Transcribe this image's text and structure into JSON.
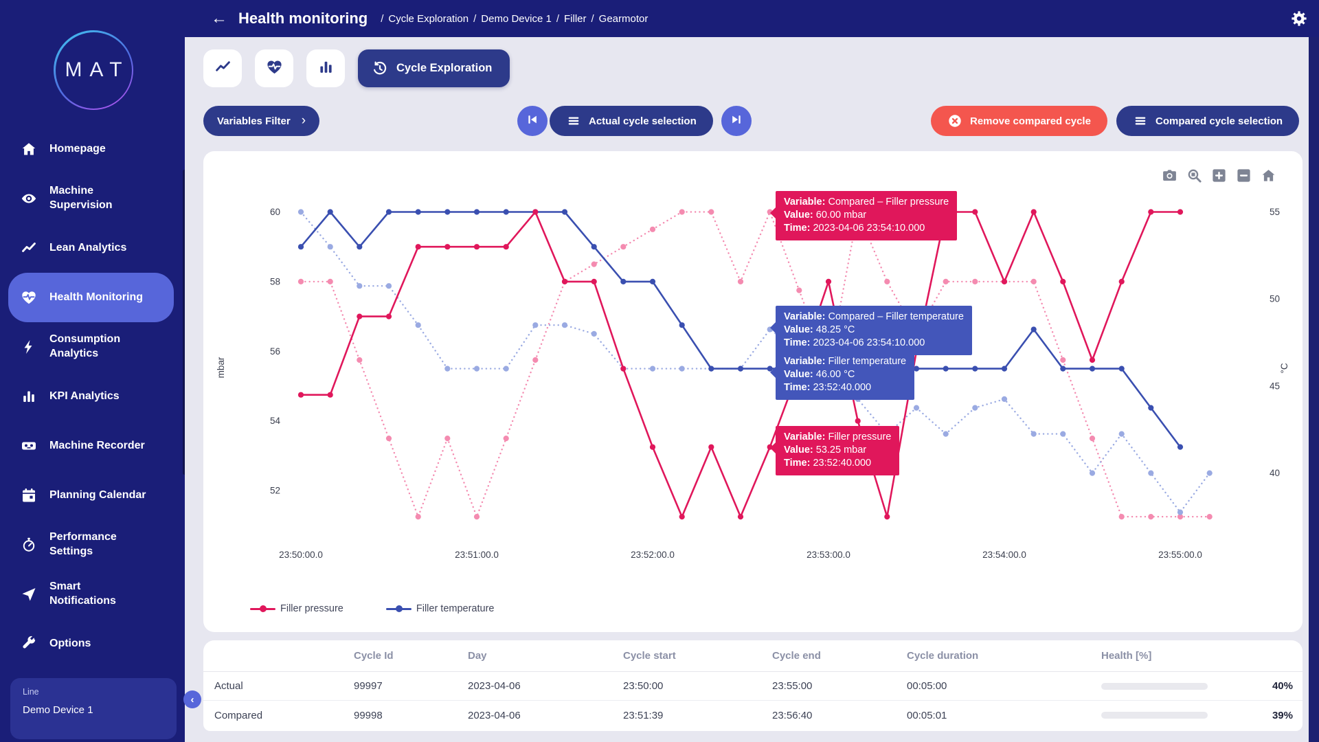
{
  "colors": {
    "navy": "#1a1e78",
    "accent": "#5766da",
    "button_navy": "#2d3a8a",
    "red": "#f4564e",
    "pink": "#e0175b",
    "pink_light": "#f48bb0",
    "blue": "#3a4fb0",
    "blue_light": "#9aaae2",
    "yellow": "#f5c843",
    "background": "#e7e7f0",
    "tooltip_blue": "#4356ba"
  },
  "sidebar": {
    "logo_text": "MAT",
    "items": [
      {
        "icon": "home",
        "label": "Homepage",
        "active": false
      },
      {
        "icon": "eye",
        "label": "Machine Supervision",
        "active": false
      },
      {
        "icon": "trend",
        "label": "Lean Analytics",
        "active": false
      },
      {
        "icon": "heart-pulse",
        "label": "Health Monitoring",
        "active": true
      },
      {
        "icon": "bolt",
        "label": "Consumption Analytics",
        "active": false
      },
      {
        "icon": "bar-chart",
        "label": "KPI Analytics",
        "active": false
      },
      {
        "icon": "recorder",
        "label": "Machine Recorder",
        "active": false
      },
      {
        "icon": "calendar",
        "label": "Planning Calendar",
        "active": false
      },
      {
        "icon": "stopwatch",
        "label": "Performance Settings",
        "active": false
      },
      {
        "icon": "send",
        "label": "Smart Notifications",
        "active": false
      },
      {
        "icon": "wrench",
        "label": "Options",
        "active": false
      }
    ],
    "device_card": {
      "label": "Line",
      "name": "Demo Device 1"
    }
  },
  "header": {
    "title": "Health monitoring",
    "separator": "/",
    "breadcrumbs": [
      "Cycle Exploration",
      "Demo Device 1",
      "Filler",
      "Gearmotor"
    ]
  },
  "toolbar": {
    "tabs": [
      {
        "icon": "trend"
      },
      {
        "icon": "heart-pulse"
      },
      {
        "icon": "bar-chart"
      }
    ],
    "active_tab": {
      "icon": "history",
      "label": "Cycle Exploration"
    }
  },
  "controls": {
    "variables_filter": "Variables Filter",
    "actual_selection": "Actual cycle selection",
    "remove_compared": "Remove compared cycle",
    "compared_selection": "Compared cycle selection"
  },
  "chart": {
    "modebar": [
      "camera",
      "zoom",
      "zoom-in",
      "zoom-out",
      "home"
    ],
    "y_left": {
      "label": "mbar",
      "ticks": [
        52,
        54,
        56,
        58,
        60
      ]
    },
    "y_right": {
      "label": "°C",
      "ticks": [
        40,
        45,
        50,
        55
      ]
    },
    "x": {
      "ticks": [
        "23:50:00.0",
        "23:51:00.0",
        "23:52:00.0",
        "23:53:00.0",
        "23:54:00.0",
        "23:55:00.0"
      ]
    },
    "legend": [
      {
        "label": "Filler pressure",
        "color_key": "pink"
      },
      {
        "label": "Filler temperature",
        "color_key": "blue"
      }
    ],
    "tooltip_labels": {
      "variable": "Variable:",
      "value": "Value:",
      "time": "Time:"
    },
    "tooltips": [
      {
        "variable": "Compared – Filler pressure",
        "value": "60.00 mbar",
        "time": "2023-04-06 23:54:10.000",
        "color": "pink"
      },
      {
        "variable": "Compared – Filler temperature",
        "value": "48.25 °C",
        "time": "2023-04-06 23:54:10.000",
        "color": "blue"
      },
      {
        "variable": "Filler temperature",
        "value": "46.00 °C",
        "time": "23:52:40.000",
        "color": "blue"
      },
      {
        "variable": "Filler pressure",
        "value": "53.25 mbar",
        "time": "23:52:40.000",
        "color": "pink"
      }
    ]
  },
  "chart_data": {
    "type": "line",
    "title": "",
    "x_start": "23:50:00",
    "x_step_seconds": 10,
    "x_axis_ticks": [
      "23:50:00.0",
      "23:51:00.0",
      "23:52:00.0",
      "23:53:00.0",
      "23:54:00.0",
      "23:55:00.0"
    ],
    "y_left_label": "mbar",
    "y_left_ticks": [
      52,
      54,
      56,
      58,
      60
    ],
    "y_right_label": "°C",
    "y_right_ticks": [
      40,
      45,
      50,
      55
    ],
    "grid": false,
    "legend_position": "bottom-left",
    "series": [
      {
        "name": "Filler pressure",
        "axis": "mbar",
        "style": "solid",
        "color_key": "pink",
        "values": [
          54.75,
          54.75,
          57,
          57,
          59,
          59,
          59,
          59,
          60,
          58,
          58,
          55.5,
          53.25,
          51.25,
          53.25,
          51.25,
          53.25,
          55.5,
          58,
          54,
          51.25,
          56,
          60,
          60,
          58,
          60,
          58,
          55.75,
          58,
          60,
          60
        ]
      },
      {
        "name": "Filler temperature",
        "axis": "°C",
        "style": "solid",
        "color_key": "blue",
        "values": [
          53,
          55,
          53,
          55,
          55,
          55,
          55,
          55,
          55,
          55,
          53,
          51,
          51,
          48.5,
          46,
          46,
          46,
          46,
          46,
          46,
          46,
          46,
          46,
          46,
          46,
          48.25,
          46,
          46,
          46,
          43.75,
          41.5
        ]
      },
      {
        "name": "Compared – Filler pressure",
        "axis": "mbar",
        "style": "dotted",
        "color_key": "pink_light",
        "values": [
          58,
          58,
          55.75,
          53.5,
          51.25,
          53.5,
          51.25,
          53.5,
          55.75,
          58,
          58.5,
          59,
          59.5,
          60,
          60,
          58,
          60,
          57.75,
          55.5,
          60,
          58,
          56.5,
          58,
          58,
          58,
          58,
          55.75,
          53.5,
          51.25,
          51.25,
          51.25,
          51.25
        ]
      },
      {
        "name": "Compared – Filler temperature",
        "axis": "°C",
        "style": "dotted",
        "color_key": "blue_light",
        "values": [
          55,
          53,
          50.75,
          50.75,
          48.5,
          46,
          46,
          46,
          48.5,
          48.5,
          48,
          46,
          46,
          46,
          46,
          46,
          48.25,
          47,
          45.5,
          44.25,
          42.25,
          43.75,
          42.25,
          43.75,
          44.25,
          42.25,
          42.25,
          40,
          42.25,
          40,
          37.75,
          40
        ]
      }
    ]
  },
  "table": {
    "headers": [
      "Cycle Id",
      "Day",
      "Cycle start",
      "Cycle end",
      "Cycle duration",
      "Health [%]"
    ],
    "rows": [
      {
        "label": "Actual",
        "cycle_id": "99997",
        "day": "2023-04-06",
        "start": "23:50:00",
        "end": "23:55:00",
        "duration": "00:05:00",
        "health": 40
      },
      {
        "label": "Compared",
        "cycle_id": "99998",
        "day": "2023-04-06",
        "start": "23:51:39",
        "end": "23:56:40",
        "duration": "00:05:01",
        "health": 39
      }
    ],
    "health_suffix": "%"
  }
}
